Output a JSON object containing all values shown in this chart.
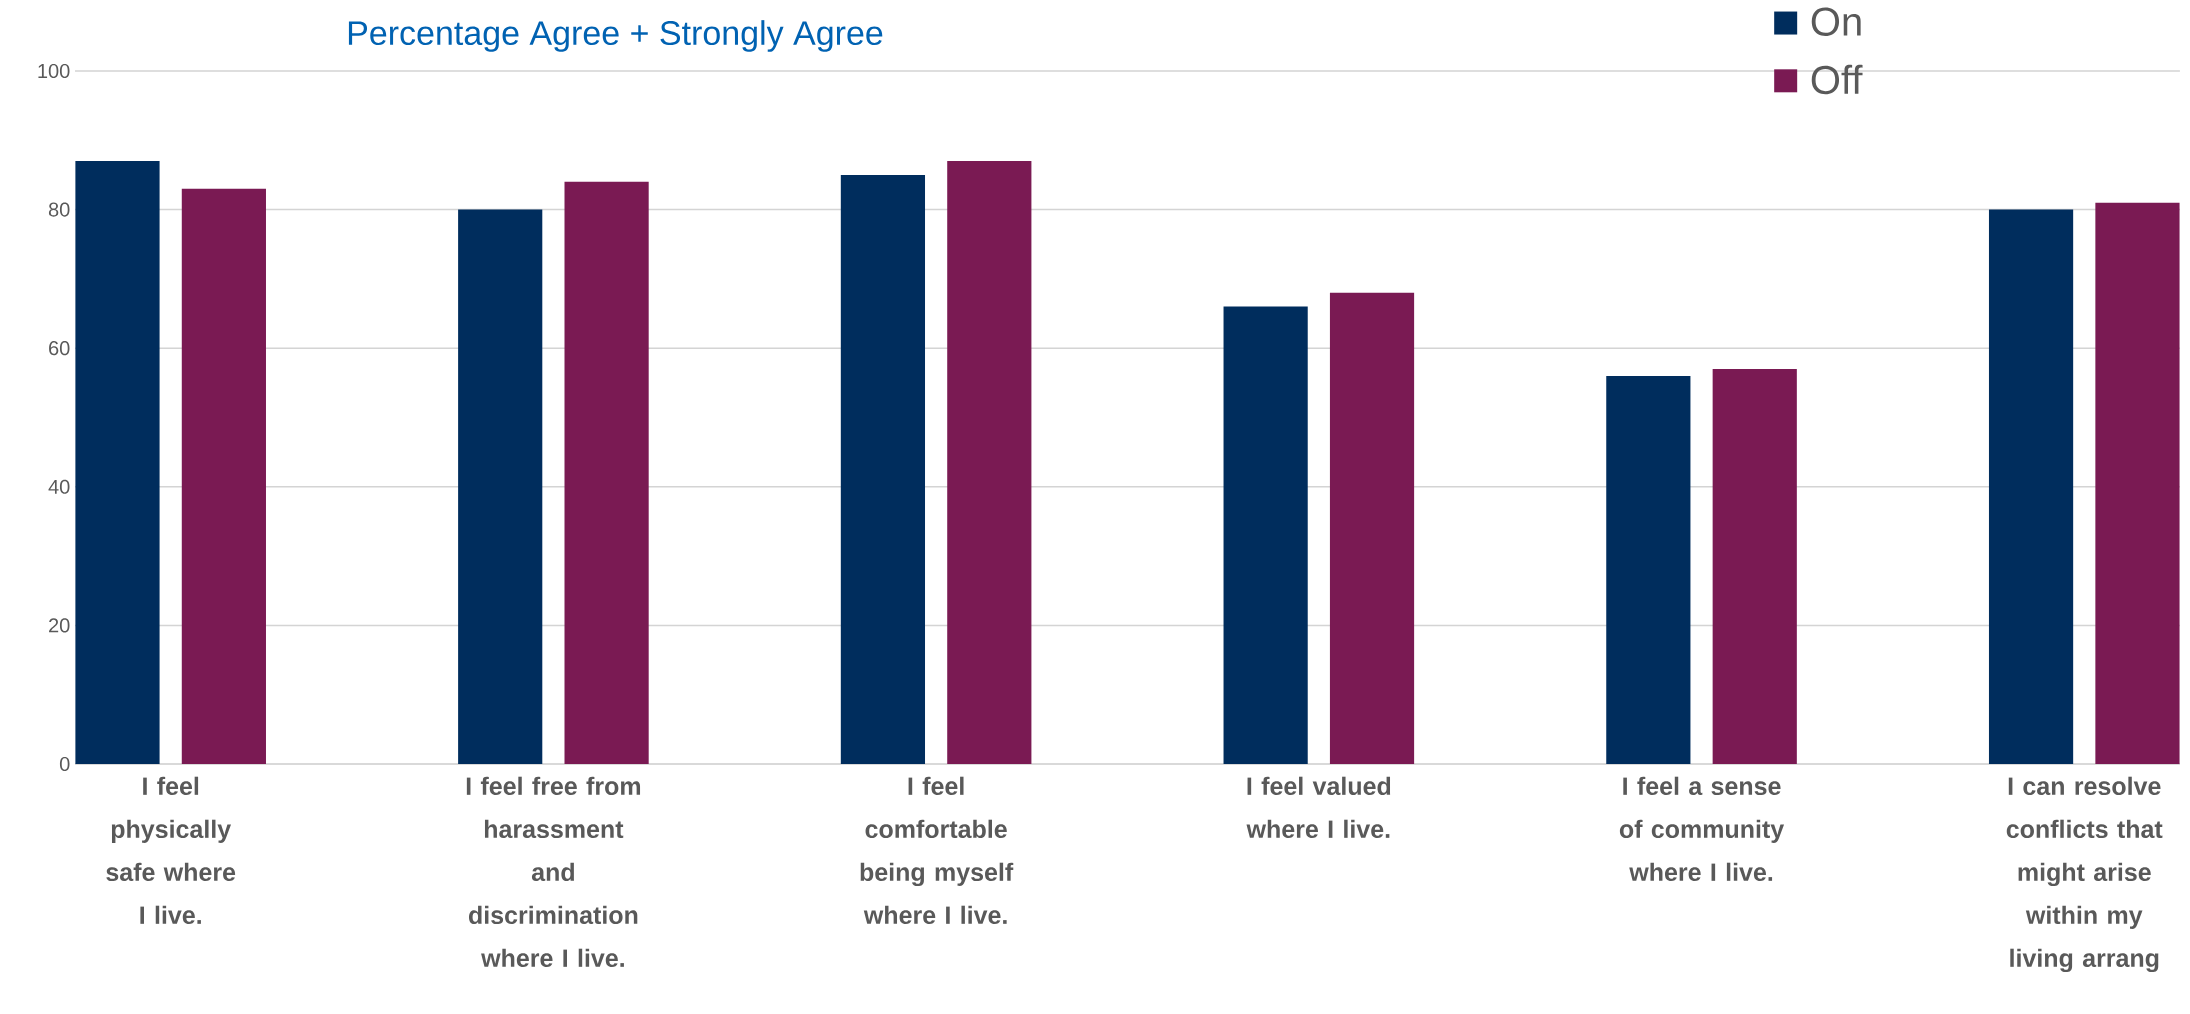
{
  "chart_data": {
    "type": "bar",
    "title": "Percentage Agree + Strongly Agree",
    "categories": [
      "I feel physically safe where I live.",
      "I feel free from harassment and discrimination where I live.",
      "I feel comfortable being myself where I live.",
      "I feel valued where I live.",
      "I feel a sense of community where I live.",
      "I can resolve conflicts that might arise within my living arrang"
    ],
    "series": [
      {
        "name": "On",
        "color": "#002d5d",
        "values": [
          87,
          80,
          85,
          66,
          56,
          80
        ]
      },
      {
        "name": "Off",
        "color": "#7a1a53",
        "values": [
          83,
          84,
          87,
          68,
          57,
          81
        ]
      }
    ],
    "ylim": [
      0,
      100
    ],
    "yticks": [
      0,
      20,
      40,
      60,
      80,
      100
    ],
    "grid": "y",
    "legend": "top right"
  }
}
